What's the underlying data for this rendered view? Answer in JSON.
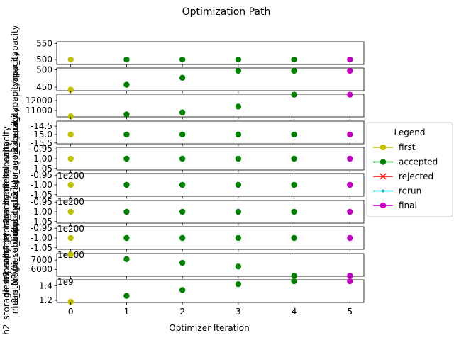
{
  "chart_data": {
    "type": "scatter",
    "title": "Optimization Path",
    "xlabel": "Optimizer Iteration",
    "x": [
      0,
      1,
      2,
      3,
      4,
      5
    ],
    "xticks": [
      "0",
      "1",
      "2",
      "3",
      "4",
      "5"
    ],
    "xlim": [
      -0.25,
      5.25
    ],
    "point_status": [
      "first",
      "accepted",
      "accepted",
      "accepted",
      "accepted",
      "final"
    ],
    "status_colors": {
      "first": "#bfbf00",
      "accepted": "#008000",
      "rejected": "#ff0000",
      "rerun": "#00bfbf",
      "final": "#bf00bf"
    },
    "legend": {
      "title": "Legend",
      "placement": "right",
      "entries": [
        {
          "label": "first",
          "color": "#bfbf00",
          "marker": "circle"
        },
        {
          "label": "accepted",
          "color": "#008000",
          "marker": "circle"
        },
        {
          "label": "rejected",
          "color": "#ff0000",
          "marker": "x"
        },
        {
          "label": "rerun",
          "color": "#00bfbf",
          "marker": "dot"
        },
        {
          "label": "final",
          "color": "#bf00bf",
          "marker": "circle"
        }
      ]
    },
    "panels": [
      {
        "ylabel": [
          "npp_capacity"
        ],
        "values": [
          500,
          500,
          500,
          500,
          500,
          500
        ],
        "ylim": [
          485,
          555
        ],
        "yticks": [
          500,
          550
        ],
        "ytick_labels": [
          "500",
          "550"
        ],
        "offset_text": ""
      },
      {
        "ylabel": [
          "npp_capacity"
        ],
        "values": [
          443,
          457,
          477,
          497,
          497,
          497
        ],
        "ylim": [
          440,
          505
        ],
        "yticks": [
          450,
          500
        ],
        "ytick_labels": [
          "450",
          "500"
        ],
        "offset_text": ""
      },
      {
        "ylabel": [
          "re_capacity"
        ],
        "values": [
          10400,
          10600,
          10800,
          11400,
          12600,
          12600
        ],
        "ylim": [
          10350,
          12650
        ],
        "yticks": [
          11000,
          12000
        ],
        "ytick_labels": [
          "11000",
          "12000"
        ],
        "offset_text": ""
      },
      {
        "ylabel": [
          "h2_capacity"
        ],
        "values": [
          -15,
          -15,
          -15,
          -15,
          -15,
          -15
        ],
        "ylim": [
          -15.55,
          -14.2
        ],
        "yticks": [
          -15.5,
          -15.0,
          -14.5
        ],
        "ytick_labels": [
          "-15.5",
          "-15.0",
          "-14.5"
        ],
        "offset_text": ""
      },
      {
        "ylabel": [
          "h2_storage_capacity",
          "diesel_capacity"
        ],
        "values": [
          -1,
          -1,
          -1,
          -1,
          -1,
          -1
        ],
        "ylim": [
          -1.058,
          -0.942
        ],
        "yticks": [
          -1.05,
          -1.0,
          -0.95
        ],
        "ytick_labels": [
          "-1.05",
          "-1.00",
          "-0.95"
        ],
        "offset_text": "1e200"
      },
      {
        "ylabel": [
          "diesel_storage_capacity",
          "h2_storage_capacity"
        ],
        "values": [
          -1,
          -1,
          -1,
          -1,
          -1,
          -1
        ],
        "ylim": [
          -1.058,
          -0.942
        ],
        "yticks": [
          -1.05,
          -1.0,
          -0.95
        ],
        "ytick_labels": [
          "-1.05",
          "-1.00",
          "-0.95"
        ],
        "offset_text": "1e200"
      },
      {
        "ylabel": [
          "diesel_capacity",
          "h2_storage_capacity"
        ],
        "values": [
          -1,
          -1,
          -1,
          -1,
          -1,
          -1
        ],
        "ylim": [
          -1.058,
          -0.942
        ],
        "yticks": [
          -1.05,
          -1.0,
          -0.95
        ],
        "ytick_labels": [
          "-1.05",
          "-1.00",
          "-0.95"
        ],
        "offset_text": "1e200"
      },
      {
        "ylabel": [
          "diesel_capacity",
          "h2_storage_capacity"
        ],
        "values": [
          -1,
          -1,
          -1,
          -1,
          -1,
          -1
        ],
        "ylim": [
          -1.058,
          -0.942
        ],
        "yticks": [
          -1.05,
          -1.0,
          -0.95
        ],
        "ytick_labels": [
          "-1.05",
          "-1.00",
          "-0.95"
        ],
        "offset_text": "1e200"
      },
      {
        "ylabel": [
          "h2_storage_capacity",
          "diesel_capacity"
        ],
        "values": [
          7600,
          7100,
          6700,
          6300,
          5300,
          5300
        ],
        "ylim": [
          5250,
          7700
        ],
        "yticks": [
          6000,
          7000
        ],
        "ytick_labels": [
          "6000",
          "7000"
        ],
        "offset_text": "1e9"
      },
      {
        "ylabel": [
          "mean_NPV",
          "h2_storage_capacity"
        ],
        "values": [
          1.18,
          1.26,
          1.34,
          1.42,
          1.46,
          1.46
        ],
        "ylim": [
          1.17,
          1.48
        ],
        "yticks": [
          1.2,
          1.4
        ],
        "ytick_labels": [
          "1.2",
          "1.4"
        ],
        "offset_text": ""
      }
    ]
  }
}
